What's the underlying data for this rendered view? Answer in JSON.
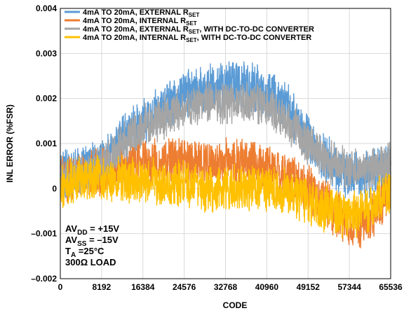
{
  "chart_data": {
    "type": "line",
    "xlabel": "CODE",
    "ylabel": "INL ERROR (%FSR)",
    "xlim": [
      0,
      65536
    ],
    "ylim": [
      -0.002,
      0.004
    ],
    "x_ticks": [
      0,
      8192,
      16384,
      24576,
      32768,
      40960,
      49152,
      57344,
      65536
    ],
    "x_tick_labels": [
      "0",
      "8192",
      "16384",
      "24576",
      "32768",
      "40960",
      "49152",
      "57344",
      "65536"
    ],
    "y_ticks": [
      -0.002,
      -0.001,
      0,
      0.001,
      0.002,
      0.003,
      0.004
    ],
    "y_tick_labels": [
      "–0.002",
      "–0.001",
      "0",
      "0.001",
      "0.002",
      "0.003",
      "0.004"
    ],
    "grid": true,
    "legend_position": "top-left",
    "colors": {
      "blue": "#5b9bd5",
      "orange": "#ed7d31",
      "gray": "#a5a5a5",
      "yellow": "#ffc000"
    },
    "series": [
      {
        "name_main": "4mA TO 20mA, EXTERNAL R",
        "name_sub": "SET",
        "name_tail": "",
        "color": "#5b9bd5",
        "x": [
          0,
          4096,
          8192,
          12288,
          16384,
          20480,
          24576,
          28672,
          32768,
          36864,
          40960,
          45056,
          49152,
          53248,
          57344,
          61440,
          65536
        ],
        "values": [
          0.0003,
          0.0004,
          0.0006,
          0.0011,
          0.0015,
          0.0018,
          0.0021,
          0.0022,
          0.0023,
          0.0023,
          0.0021,
          0.0018,
          0.0011,
          0.0006,
          0.0003,
          0.0003,
          0.0005
        ],
        "noise": 0.00045
      },
      {
        "name_main": "4mA TO 20mA, INTERNAL R",
        "name_sub": "SET",
        "name_tail": "",
        "color": "#ed7d31",
        "x": [
          0,
          4096,
          8192,
          12288,
          16384,
          20480,
          24576,
          28672,
          32768,
          36864,
          40960,
          45056,
          49152,
          53248,
          57344,
          61440,
          65536
        ],
        "values": [
          0.0002,
          0.0003,
          0.0004,
          0.0005,
          0.0006,
          0.0006,
          0.0006,
          0.0006,
          0.0006,
          0.0006,
          0.0005,
          0.0003,
          0.0,
          -0.0004,
          -0.0008,
          -0.0007,
          0.0
        ],
        "noise": 0.00045
      },
      {
        "name_main": "4mA TO 20mA, EXTERNAL R",
        "name_sub": "SET",
        "name_tail": ", WITH DC-TO-DC CONVERTER",
        "color": "#a5a5a5",
        "x": [
          0,
          4096,
          8192,
          12288,
          16384,
          20480,
          24576,
          28672,
          32768,
          36864,
          40960,
          45056,
          49152,
          53248,
          57344,
          61440,
          65536
        ],
        "values": [
          0.0002,
          0.0003,
          0.0005,
          0.001,
          0.0014,
          0.0016,
          0.0018,
          0.0019,
          0.0019,
          0.0019,
          0.0018,
          0.0015,
          0.001,
          0.0006,
          0.0004,
          0.0004,
          0.0006
        ],
        "noise": 0.0004
      },
      {
        "name_main": "4mA TO 20mA, INTERNAL R",
        "name_sub": "SET",
        "name_tail": ", WITH DC-TO-DC CONVERTER",
        "color": "#ffc000",
        "x": [
          0,
          4096,
          8192,
          12288,
          16384,
          20480,
          24576,
          28672,
          32768,
          36864,
          40960,
          45056,
          49152,
          53248,
          57344,
          61440,
          65536
        ],
        "values": [
          0.0001,
          0.0002,
          0.0002,
          0.0002,
          0.0002,
          0.0001,
          0.0001,
          0.0,
          0.0,
          0.0,
          0.0,
          -0.0001,
          -0.0003,
          -0.0005,
          -0.0006,
          -0.0005,
          0.0
        ],
        "noise": 0.00045
      }
    ],
    "annotations": [
      {
        "main": "AV",
        "sub": "DD",
        "tail": " = +15V"
      },
      {
        "main": "AV",
        "sub": "SS",
        "tail": " = –15V"
      },
      {
        "main": "T",
        "sub": "A",
        "tail": " =25°C"
      },
      {
        "main": "300Ω LOAD",
        "sub": "",
        "tail": ""
      }
    ]
  }
}
